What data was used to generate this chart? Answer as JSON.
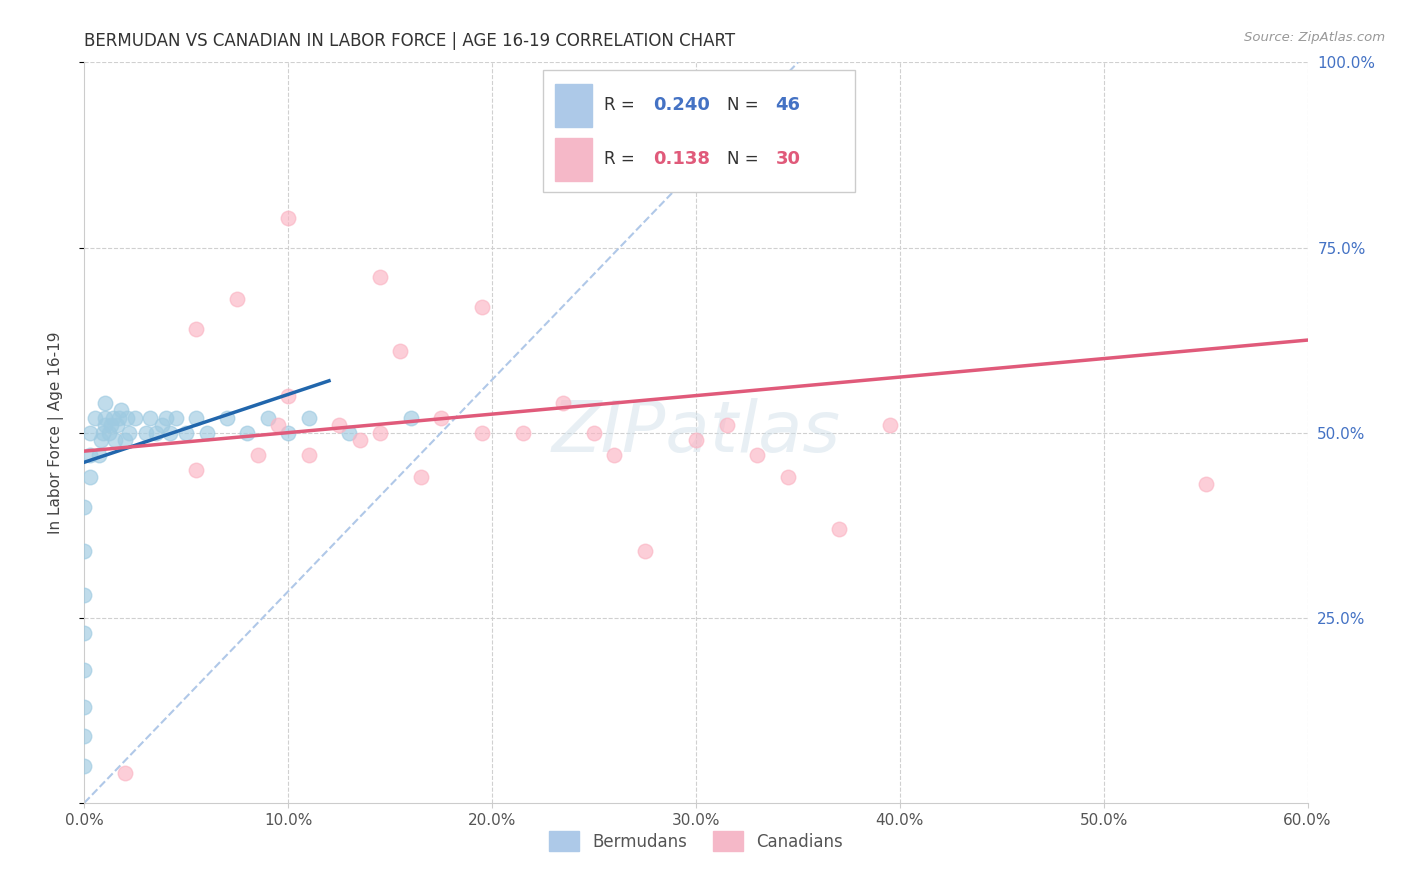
{
  "title": "BERMUDAN VS CANADIAN IN LABOR FORCE | AGE 16-19 CORRELATION CHART",
  "source": "Source: ZipAtlas.com",
  "ylabel": "In Labor Force | Age 16-19",
  "xlim": [
    0.0,
    0.6
  ],
  "ylim": [
    0.0,
    1.0
  ],
  "xticks": [
    0.0,
    0.1,
    0.2,
    0.3,
    0.4,
    0.5,
    0.6
  ],
  "yticks": [
    0.0,
    0.25,
    0.5,
    0.75,
    1.0
  ],
  "xticklabels": [
    "0.0%",
    "10.0%",
    "20.0%",
    "30.0%",
    "40.0%",
    "50.0%",
    "60.0%"
  ],
  "yticklabels_right": [
    "",
    "25.0%",
    "50.0%",
    "75.0%",
    "100.0%"
  ],
  "legend_R_blue": "0.240",
  "legend_N_blue": "46",
  "legend_R_pink": "0.138",
  "legend_N_pink": "30",
  "blue_scatter_color": "#9ecae1",
  "pink_scatter_color": "#fbb4c3",
  "blue_line_color": "#2166ac",
  "pink_line_color": "#e05a7a",
  "diag_line_color": "#b0c8e8",
  "watermark": "ZIPatlas",
  "background_color": "#ffffff",
  "blue_dots_x": [
    0.0,
    0.0,
    0.0,
    0.0,
    0.0,
    0.0,
    0.0,
    0.0,
    0.003,
    0.003,
    0.003,
    0.005,
    0.007,
    0.008,
    0.009,
    0.01,
    0.01,
    0.01,
    0.012,
    0.013,
    0.014,
    0.015,
    0.016,
    0.017,
    0.018,
    0.02,
    0.021,
    0.022,
    0.025,
    0.03,
    0.032,
    0.035,
    0.038,
    0.04,
    0.042,
    0.045,
    0.05,
    0.055,
    0.06,
    0.07,
    0.08,
    0.09,
    0.1,
    0.11,
    0.13,
    0.16
  ],
  "blue_dots_y": [
    0.05,
    0.09,
    0.13,
    0.18,
    0.23,
    0.28,
    0.34,
    0.4,
    0.44,
    0.47,
    0.5,
    0.52,
    0.47,
    0.49,
    0.5,
    0.51,
    0.52,
    0.54,
    0.5,
    0.51,
    0.52,
    0.49,
    0.51,
    0.52,
    0.53,
    0.49,
    0.52,
    0.5,
    0.52,
    0.5,
    0.52,
    0.5,
    0.51,
    0.52,
    0.5,
    0.52,
    0.5,
    0.52,
    0.5,
    0.52,
    0.5,
    0.52,
    0.5,
    0.52,
    0.5,
    0.52
  ],
  "pink_dots_x": [
    0.02,
    0.055,
    0.075,
    0.085,
    0.095,
    0.1,
    0.11,
    0.125,
    0.135,
    0.145,
    0.155,
    0.165,
    0.175,
    0.195,
    0.215,
    0.235,
    0.25,
    0.26,
    0.275,
    0.3,
    0.315,
    0.33,
    0.345,
    0.37,
    0.395,
    0.55,
    0.1,
    0.145,
    0.195,
    0.055
  ],
  "pink_dots_y": [
    0.04,
    0.64,
    0.68,
    0.47,
    0.51,
    0.55,
    0.47,
    0.51,
    0.49,
    0.5,
    0.61,
    0.44,
    0.52,
    0.5,
    0.5,
    0.54,
    0.5,
    0.47,
    0.34,
    0.49,
    0.51,
    0.47,
    0.44,
    0.37,
    0.51,
    0.43,
    0.79,
    0.71,
    0.67,
    0.45
  ]
}
